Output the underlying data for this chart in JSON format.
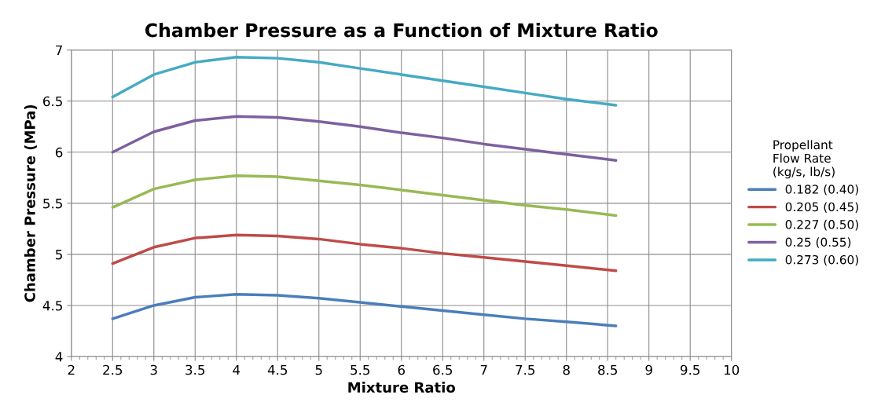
{
  "chart_data": {
    "type": "line",
    "title": "Chamber Pressure as a Function of Mixture Ratio",
    "xlabel": "Mixture Ratio",
    "ylabel": "Chamber Pressure (MPa)",
    "legend_title": "Propellant\nFlow Rate\n(kg/s, lb/s)",
    "x": [
      2.5,
      3,
      3.5,
      4,
      4.5,
      5,
      5.5,
      6,
      6.5,
      7,
      7.5,
      8,
      8.6
    ],
    "series": [
      {
        "name": "0.182 (0.40)",
        "color": "#4a7ebb",
        "values": [
          4.37,
          4.5,
          4.58,
          4.61,
          4.6,
          4.57,
          4.53,
          4.49,
          4.45,
          4.41,
          4.37,
          4.34,
          4.3
        ]
      },
      {
        "name": "0.205 (0.45)",
        "color": "#be4b48",
        "values": [
          4.91,
          5.07,
          5.16,
          5.19,
          5.18,
          5.15,
          5.1,
          5.06,
          5.01,
          4.97,
          4.93,
          4.89,
          4.84
        ]
      },
      {
        "name": "0.227 (0.50)",
        "color": "#98b954",
        "values": [
          5.46,
          5.64,
          5.73,
          5.77,
          5.76,
          5.72,
          5.68,
          5.63,
          5.58,
          5.53,
          5.48,
          5.44,
          5.38
        ]
      },
      {
        "name": "0.25 (0.55)",
        "color": "#7d60a0",
        "values": [
          6.0,
          6.2,
          6.31,
          6.35,
          6.34,
          6.3,
          6.25,
          6.19,
          6.14,
          6.08,
          6.03,
          5.98,
          5.92
        ]
      },
      {
        "name": "0.273 (0.60)",
        "color": "#46aac5",
        "values": [
          6.54,
          6.76,
          6.88,
          6.93,
          6.92,
          6.88,
          6.82,
          6.76,
          6.7,
          6.64,
          6.58,
          6.52,
          6.46
        ]
      }
    ],
    "xlim": [
      2,
      10
    ],
    "xticks": [
      2,
      2.5,
      3,
      3.5,
      4,
      4.5,
      5,
      5.5,
      6,
      6.5,
      7,
      7.5,
      8,
      8.5,
      9,
      9.5,
      10
    ],
    "ylim": [
      4,
      7
    ],
    "yticks": [
      4,
      4.5,
      5,
      5.5,
      6,
      6.5,
      7
    ],
    "grid": true,
    "legend": "right",
    "marker": "none",
    "line_style": "solid"
  }
}
